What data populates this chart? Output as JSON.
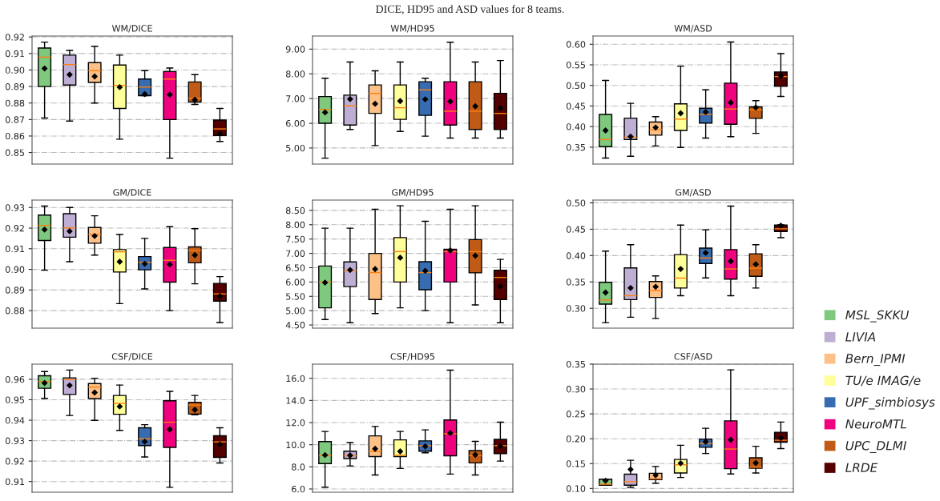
{
  "chart_data": [
    {
      "type": "box",
      "title": "WM/DICE",
      "annotations": [
        "DICE, HD95 and ASD values for 8 teams."
      ],
      "categories": [
        null,
        null,
        null,
        null,
        null,
        null,
        null,
        null
      ],
      "tick_labels": "y",
      "grid": "y",
      "ylim": [
        0.843,
        0.9206
      ],
      "yticks": [
        0.85,
        0.86,
        0.87,
        0.88,
        0.89,
        {
          "value": 0.9,
          "label": "0.90"
        },
        0.91,
        0.92
      ],
      "series": [
        {
          "color": "#7fc97f",
          "boxes": [
            {
              "low": 0.8709,
              "q1": 0.89,
              "median": 0.9078,
              "q3": 0.9133,
              "high": 0.9169,
              "mean": 0.9009
            },
            null,
            null,
            null,
            null,
            null,
            null,
            null
          ]
        },
        {
          "color": "#beaed4",
          "boxes": [
            null,
            {
              "low": 0.8691,
              "q1": 0.8909,
              "median": 0.9033,
              "q3": 0.909,
              "high": 0.9119,
              "mean": 0.8972
            },
            null,
            null,
            null,
            null,
            null,
            null
          ]
        },
        {
          "color": "#fdc086",
          "boxes": [
            null,
            null,
            {
              "low": 0.88,
              "q1": 0.8925,
              "median": 0.8996,
              "q3": 0.9045,
              "high": 0.9143,
              "mean": 0.8961
            },
            null,
            null,
            null,
            null,
            null
          ]
        },
        {
          "color": "#ffff99",
          "boxes": [
            null,
            null,
            null,
            {
              "low": 0.8581,
              "q1": 0.8767,
              "median": 0.8907,
              "q3": 0.903,
              "high": 0.909,
              "mean": 0.8896
            },
            null,
            null,
            null,
            null
          ]
        },
        {
          "color": "#386cb0",
          "boxes": [
            null,
            null,
            null,
            null,
            {
              "low": 0.8845,
              "q1": 0.8845,
              "median": 0.8897,
              "q3": 0.8945,
              "high": 0.8996,
              "mean": 0.8854
            },
            null,
            null,
            null
          ]
        },
        {
          "color": "#f0027f",
          "boxes": [
            null,
            null,
            null,
            null,
            null,
            {
              "low": 0.8466,
              "q1": 0.87,
              "median": 0.8945,
              "q3": 0.8991,
              "high": 0.9012,
              "mean": 0.8851
            },
            null,
            null
          ]
        },
        {
          "color": "#bf5b17",
          "boxes": [
            null,
            null,
            null,
            null,
            null,
            null,
            {
              "low": 0.8791,
              "q1": 0.8806,
              "median": 0.8828,
              "q3": 0.8928,
              "high": 0.8972,
              "mean": 0.8819
            },
            null
          ]
        },
        {
          "color": "#550000",
          "boxes": [
            null,
            null,
            null,
            null,
            null,
            null,
            null,
            {
              "low": 0.8567,
              "q1": 0.8603,
              "median": 0.8643,
              "q3": 0.8697,
              "high": 0.8767,
              "mean": 0.8615
            }
          ]
        }
      ]
    },
    {
      "type": "box",
      "title": "WM/HD95",
      "categories": [
        null,
        null,
        null,
        null,
        null,
        null,
        null,
        null
      ],
      "tick_labels": "y",
      "grid": "y",
      "ylim": [
        4.35,
        9.53
      ],
      "yticks": [
        {
          "value": 5,
          "label": "5.00"
        },
        {
          "value": 6,
          "label": "6.00"
        },
        {
          "value": 7,
          "label": "7.00"
        },
        {
          "value": 8,
          "label": "8.00"
        },
        {
          "value": 9,
          "label": "9.00"
        }
      ],
      "series": [
        {
          "color": "#7fc97f",
          "boxes": [
            {
              "low": 4.59,
              "q1": 6.0,
              "median": 6.56,
              "q3": 7.08,
              "high": 7.82,
              "mean": 6.44
            },
            null,
            null,
            null,
            null,
            null,
            null,
            null
          ]
        },
        {
          "color": "#beaed4",
          "boxes": [
            null,
            {
              "low": 5.75,
              "q1": 5.93,
              "median": 6.71,
              "q3": 7.14,
              "high": 8.48,
              "mean": 6.98
            },
            null,
            null,
            null,
            null,
            null,
            null
          ]
        },
        {
          "color": "#fdc086",
          "boxes": [
            null,
            null,
            {
              "low": 5.1,
              "q1": 6.4,
              "median": 7.21,
              "q3": 7.55,
              "high": 8.12,
              "mean": 6.79
            },
            null,
            null,
            null,
            null,
            null
          ]
        },
        {
          "color": "#ffff99",
          "boxes": [
            null,
            null,
            null,
            {
              "low": 5.67,
              "q1": 6.16,
              "median": 6.63,
              "q3": 7.55,
              "high": 8.48,
              "mean": 6.9
            },
            null,
            null,
            null,
            null
          ]
        },
        {
          "color": "#386cb0",
          "boxes": [
            null,
            null,
            null,
            null,
            {
              "low": 5.48,
              "q1": 6.32,
              "median": 7.35,
              "q3": 7.68,
              "high": 7.82,
              "mean": 6.97
            },
            null,
            null,
            null
          ]
        },
        {
          "color": "#f0027f",
          "boxes": [
            null,
            null,
            null,
            null,
            null,
            {
              "low": 5.4,
              "q1": 5.93,
              "median": 6.49,
              "q3": 7.68,
              "high": 9.28,
              "mean": 6.88
            },
            null,
            null
          ]
        },
        {
          "color": "#bf5b17",
          "boxes": [
            null,
            null,
            null,
            null,
            null,
            null,
            {
              "low": 5.4,
              "q1": 5.75,
              "median": 6.49,
              "q3": 7.68,
              "high": 8.48,
              "mean": 6.69
            },
            null
          ]
        },
        {
          "color": "#550000",
          "boxes": [
            null,
            null,
            null,
            null,
            null,
            null,
            null,
            {
              "low": 5.4,
              "q1": 5.75,
              "median": 6.4,
              "q3": 7.21,
              "high": 8.54,
              "mean": 6.61
            }
          ]
        }
      ]
    },
    {
      "type": "box",
      "title": "WM/ASD",
      "categories": [
        null,
        null,
        null,
        null,
        null,
        null,
        null,
        null
      ],
      "tick_labels": "y",
      "grid": "y",
      "ylim": [
        0.309,
        0.62
      ],
      "yticks": [
        0.35,
        {
          "value": 0.4,
          "label": "0.40"
        },
        0.45,
        {
          "value": 0.5,
          "label": "0.50"
        },
        0.55,
        {
          "value": 0.6,
          "label": "0.60"
        }
      ],
      "series": [
        {
          "color": "#7fc97f",
          "boxes": [
            {
              "low": 0.3237,
              "q1": 0.3512,
              "median": 0.3685,
              "q3": 0.4295,
              "high": 0.512,
              "mean": 0.3907
            },
            null,
            null,
            null,
            null,
            null,
            null,
            null
          ]
        },
        {
          "color": "#beaed4",
          "boxes": [
            null,
            {
              "low": 0.3279,
              "q1": 0.3685,
              "median": 0.374,
              "q3": 0.4206,
              "high": 0.4565,
              "mean": 0.3757
            },
            null,
            null,
            null,
            null,
            null,
            null
          ]
        },
        {
          "color": "#fdc086",
          "boxes": [
            null,
            null,
            {
              "low": 0.353,
              "q1": 0.3793,
              "median": 0.3925,
              "q3": 0.411,
              "high": 0.4242,
              "mean": 0.3978
            },
            null,
            null,
            null,
            null,
            null
          ]
        },
        {
          "color": "#ffff99",
          "boxes": [
            null,
            null,
            null,
            {
              "low": 0.3494,
              "q1": 0.3907,
              "median": 0.4182,
              "q3": 0.4553,
              "high": 0.5468,
              "mean": 0.4325
            },
            null,
            null,
            null,
            null
          ]
        },
        {
          "color": "#386cb0",
          "boxes": [
            null,
            null,
            null,
            null,
            {
              "low": 0.3721,
              "q1": 0.4086,
              "median": 0.4295,
              "q3": 0.4445,
              "high": 0.4894,
              "mean": 0.4355
            },
            null,
            null,
            null
          ]
        },
        {
          "color": "#f0027f",
          "boxes": [
            null,
            null,
            null,
            null,
            null,
            {
              "low": 0.3757,
              "q1": 0.4056,
              "median": 0.4427,
              "q3": 0.5055,
              "high": 0.6054,
              "mean": 0.4583
            },
            null,
            null
          ]
        },
        {
          "color": "#bf5b17",
          "boxes": [
            null,
            null,
            null,
            null,
            null,
            null,
            {
              "low": 0.3835,
              "q1": 0.42,
              "median": 0.4409,
              "q3": 0.4481,
              "high": 0.463,
              "mean": 0.4463
            },
            null
          ]
        },
        {
          "color": "#550000",
          "boxes": [
            null,
            null,
            null,
            null,
            null,
            null,
            null,
            {
              "low": 0.4732,
              "q1": 0.4977,
              "median": 0.5216,
              "q3": 0.5324,
              "high": 0.5773,
              "mean": 0.5234
            }
          ]
        }
      ]
    },
    {
      "type": "box",
      "title": "GM/DICE",
      "categories": [
        null,
        null,
        null,
        null,
        null,
        null,
        null,
        null
      ],
      "tick_labels": "y",
      "grid": "y",
      "ylim": [
        0.8715,
        0.9336
      ],
      "yticks": [
        0.88,
        0.89,
        {
          "value": 0.9,
          "label": "0.90"
        },
        0.91,
        0.92,
        0.93
      ],
      "series": [
        {
          "color": "#7fc97f",
          "boxes": [
            {
              "low": 0.8996,
              "q1": 0.914,
              "median": 0.9213,
              "q3": 0.9263,
              "high": 0.9307,
              "mean": 0.9193
            },
            null,
            null,
            null,
            null,
            null,
            null,
            null
          ]
        },
        {
          "color": "#beaed4",
          "boxes": [
            null,
            {
              "low": 0.9037,
              "q1": 0.9156,
              "median": 0.9201,
              "q3": 0.927,
              "high": 0.93,
              "mean": 0.9185
            },
            null,
            null,
            null,
            null,
            null,
            null
          ]
        },
        {
          "color": "#fdc086",
          "boxes": [
            null,
            null,
            {
              "low": 0.9069,
              "q1": 0.9127,
              "median": 0.917,
              "q3": 0.9203,
              "high": 0.926,
              "mean": 0.9162
            },
            null,
            null,
            null,
            null,
            null
          ]
        },
        {
          "color": "#ffff99",
          "boxes": [
            null,
            null,
            null,
            {
              "low": 0.8834,
              "q1": 0.8987,
              "median": 0.9085,
              "q3": 0.9096,
              "high": 0.9169,
              "mean": 0.9037
            },
            null,
            null,
            null,
            null
          ]
        },
        {
          "color": "#386cb0",
          "boxes": [
            null,
            null,
            null,
            null,
            {
              "low": 0.8905,
              "q1": 0.8998,
              "median": 0.9034,
              "q3": 0.9062,
              "high": 0.915,
              "mean": 0.9027
            },
            null,
            null,
            null
          ]
        },
        {
          "color": "#f0027f",
          "boxes": [
            null,
            null,
            null,
            null,
            null,
            {
              "low": 0.88,
              "q1": 0.8938,
              "median": 0.9044,
              "q3": 0.9106,
              "high": 0.9207,
              "mean": 0.9024
            },
            null,
            null
          ]
        },
        {
          "color": "#bf5b17",
          "boxes": [
            null,
            null,
            null,
            null,
            null,
            null,
            {
              "low": 0.893,
              "q1": 0.9032,
              "median": 0.9092,
              "q3": 0.9109,
              "high": 0.9197,
              "mean": 0.9069
            },
            null
          ]
        },
        {
          "color": "#550000",
          "boxes": [
            null,
            null,
            null,
            null,
            null,
            null,
            null,
            {
              "low": 0.8742,
              "q1": 0.8846,
              "median": 0.8881,
              "q3": 0.8932,
              "high": 0.8965,
              "mean": 0.887
            }
          ]
        }
      ]
    },
    {
      "type": "box",
      "title": "GM/HD95",
      "categories": [
        null,
        null,
        null,
        null,
        null,
        null,
        null,
        null
      ],
      "tick_labels": "y",
      "grid": "y",
      "ylim": [
        4.39,
        8.86
      ],
      "yticks": [
        {
          "value": 4.5,
          "label": "4.50"
        },
        {
          "value": 5,
          "label": "5.00"
        },
        {
          "value": 5.5,
          "label": "5.50"
        },
        {
          "value": 6,
          "label": "6.00"
        },
        {
          "value": 6.5,
          "label": "6.50"
        },
        {
          "value": 7,
          "label": "7.00"
        },
        {
          "value": 7.5,
          "label": "7.50"
        },
        {
          "value": 8,
          "label": "8.00"
        },
        {
          "value": 8.5,
          "label": "8.50"
        }
      ],
      "series": [
        {
          "color": "#7fc97f",
          "boxes": [
            {
              "low": 4.69,
              "q1": 5.1,
              "median": 6.0,
              "q3": 6.56,
              "high": 7.88,
              "mean": 5.98
            },
            null,
            null,
            null,
            null,
            null,
            null,
            null
          ]
        },
        {
          "color": "#beaed4",
          "boxes": [
            null,
            {
              "low": 4.58,
              "q1": 5.84,
              "median": 6.4,
              "q3": 6.7,
              "high": 7.88,
              "mean": 6.42
            },
            null,
            null,
            null,
            null,
            null,
            null
          ]
        },
        {
          "color": "#fdc086",
          "boxes": [
            null,
            null,
            {
              "low": 4.9,
              "q1": 5.39,
              "median": 6.33,
              "q3": 7.0,
              "high": 8.54,
              "mean": 6.45
            },
            null,
            null,
            null,
            null,
            null
          ]
        },
        {
          "color": "#ffff99",
          "boxes": [
            null,
            null,
            null,
            {
              "low": 5.1,
              "q1": 6.0,
              "median": 7.06,
              "q3": 7.55,
              "high": 8.66,
              "mean": 6.85
            },
            null,
            null,
            null,
            null
          ]
        },
        {
          "color": "#386cb0",
          "boxes": [
            null,
            null,
            null,
            null,
            {
              "low": 5.0,
              "q1": 5.73,
              "median": 6.33,
              "q3": 6.71,
              "high": 8.12,
              "mean": 6.39
            },
            null,
            null,
            null
          ]
        },
        {
          "color": "#f0027f",
          "boxes": [
            null,
            null,
            null,
            null,
            null,
            {
              "low": 4.58,
              "q1": 6.0,
              "median": 7.06,
              "q3": 7.14,
              "high": 8.54,
              "mean": 7.1
            },
            null,
            null
          ]
        },
        {
          "color": "#bf5b17",
          "boxes": [
            null,
            null,
            null,
            null,
            null,
            null,
            {
              "low": 5.2,
              "q1": 6.32,
              "median": 7.06,
              "q3": 7.48,
              "high": 8.66,
              "mean": 6.92
            },
            null
          ]
        },
        {
          "color": "#550000",
          "boxes": [
            null,
            null,
            null,
            null,
            null,
            null,
            null,
            {
              "low": 4.58,
              "q1": 5.39,
              "median": 6.16,
              "q3": 6.41,
              "high": 6.79,
              "mean": 5.85
            }
          ]
        }
      ]
    },
    {
      "type": "box",
      "title": "GM/ASD",
      "categories": [
        null,
        null,
        null,
        null,
        null,
        null,
        null,
        null
      ],
      "tick_labels": "y",
      "grid": "y",
      "ylim": [
        0.2624,
        0.5052
      ],
      "yticks": [
        {
          "value": 0.3,
          "label": "0.30"
        },
        0.35,
        {
          "value": 0.4,
          "label": "0.40"
        },
        0.45,
        {
          "value": 0.5,
          "label": "0.50"
        }
      ],
      "series": [
        {
          "color": "#7fc97f",
          "boxes": [
            {
              "low": 0.2728,
              "q1": 0.308,
              "median": 0.3155,
              "q3": 0.3493,
              "high": 0.4085,
              "mean": 0.33
            },
            null,
            null,
            null,
            null,
            null,
            null,
            null
          ]
        },
        {
          "color": "#beaed4",
          "boxes": [
            null,
            {
              "low": 0.2831,
              "q1": 0.3164,
              "median": 0.3239,
              "q3": 0.3765,
              "high": 0.4207,
              "mean": 0.3385
            },
            null,
            null,
            null,
            null,
            null,
            null
          ]
        },
        {
          "color": "#fdc086",
          "boxes": [
            null,
            null,
            {
              "low": 0.2808,
              "q1": 0.3207,
              "median": 0.3338,
              "q3": 0.3507,
              "high": 0.3615,
              "mean": 0.3408
            },
            null,
            null,
            null,
            null,
            null
          ]
        },
        {
          "color": "#ffff99",
          "boxes": [
            null,
            null,
            null,
            {
              "low": 0.3239,
              "q1": 0.3385,
              "median": 0.3573,
              "q3": 0.4019,
              "high": 0.4577,
              "mean": 0.3746
            },
            null,
            null,
            null,
            null
          ]
        },
        {
          "color": "#386cb0",
          "boxes": [
            null,
            null,
            null,
            null,
            {
              "low": 0.3577,
              "q1": 0.385,
              "median": 0.3953,
              "q3": 0.4141,
              "high": 0.4488,
              "mean": 0.4052
            },
            null,
            null,
            null
          ]
        },
        {
          "color": "#f0027f",
          "boxes": [
            null,
            null,
            null,
            null,
            null,
            {
              "low": 0.3239,
              "q1": 0.3554,
              "median": 0.3746,
              "q3": 0.4113,
              "high": 0.4939,
              "mean": 0.3892
            },
            null,
            null
          ]
        },
        {
          "color": "#bf5b17",
          "boxes": [
            null,
            null,
            null,
            null,
            null,
            null,
            {
              "low": 0.3385,
              "q1": 0.3606,
              "median": 0.3761,
              "q3": 0.4033,
              "high": 0.4207,
              "mean": 0.3836
            },
            null
          ]
        },
        {
          "color": "#550000",
          "boxes": [
            null,
            null,
            null,
            null,
            null,
            null,
            null,
            {
              "low": 0.4338,
              "q1": 0.4455,
              "median": 0.4507,
              "q3": 0.4577,
              "high": 0.4582,
              "mean": 0.4568
            }
          ]
        }
      ]
    },
    {
      "type": "box",
      "title": "CSF/DICE",
      "categories": [
        null,
        null,
        null,
        null,
        null,
        null,
        null,
        null
      ],
      "tick_labels": "y",
      "grid": "y",
      "ylim": [
        0.9048,
        0.9674
      ],
      "yticks": [
        0.91,
        0.92,
        0.93,
        0.94,
        0.95,
        0.96
      ],
      "series": [
        {
          "color": "#7fc97f",
          "boxes": [
            {
              "low": 0.9507,
              "q1": 0.9556,
              "median": 0.9589,
              "q3": 0.9617,
              "high": 0.9638,
              "mean": 0.9582
            },
            null,
            null,
            null,
            null,
            null,
            null,
            null
          ]
        },
        {
          "color": "#beaed4",
          "boxes": [
            null,
            {
              "low": 0.9423,
              "q1": 0.9526,
              "median": 0.9599,
              "q3": 0.9607,
              "high": 0.9645,
              "mean": 0.957
            },
            null,
            null,
            null,
            null,
            null,
            null
          ]
        },
        {
          "color": "#fdc086",
          "boxes": [
            null,
            null,
            {
              "low": 0.9399,
              "q1": 0.9506,
              "median": 0.9562,
              "q3": 0.9579,
              "high": 0.9605,
              "mean": 0.9535
            },
            null,
            null,
            null,
            null,
            null
          ]
        },
        {
          "color": "#ffff99",
          "boxes": [
            null,
            null,
            null,
            {
              "low": 0.935,
              "q1": 0.9429,
              "median": 0.9482,
              "q3": 0.9521,
              "high": 0.9572,
              "mean": 0.9467
            },
            null,
            null,
            null,
            null
          ]
        },
        {
          "color": "#386cb0",
          "boxes": [
            null,
            null,
            null,
            null,
            {
              "low": 0.922,
              "q1": 0.9276,
              "median": 0.9309,
              "q3": 0.9363,
              "high": 0.9378,
              "mean": 0.9295
            },
            null,
            null,
            null
          ]
        },
        {
          "color": "#f0027f",
          "boxes": [
            null,
            null,
            null,
            null,
            null,
            {
              "low": 0.9072,
              "q1": 0.9267,
              "median": 0.939,
              "q3": 0.9495,
              "high": 0.9541,
              "mean": 0.9355
            },
            null,
            null
          ]
        },
        {
          "color": "#bf5b17",
          "boxes": [
            null,
            null,
            null,
            null,
            null,
            null,
            {
              "low": 0.9426,
              "q1": 0.943,
              "median": 0.9474,
              "q3": 0.9487,
              "high": 0.9521,
              "mean": 0.9451
            },
            null
          ]
        },
        {
          "color": "#550000",
          "boxes": [
            null,
            null,
            null,
            null,
            null,
            null,
            null,
            {
              "low": 0.9191,
              "q1": 0.9218,
              "median": 0.9294,
              "q3": 0.9324,
              "high": 0.9363,
              "mean": 0.9282
            }
          ]
        }
      ]
    },
    {
      "type": "box",
      "title": "CSF/HD95",
      "categories": [
        null,
        null,
        null,
        null,
        null,
        null,
        null,
        null
      ],
      "tick_labels": "y",
      "grid": "y",
      "ylim": [
        5.71,
        17.28
      ],
      "yticks": [
        {
          "value": 6,
          "label": "6.0"
        },
        {
          "value": 8,
          "label": "8.0"
        },
        {
          "value": 10,
          "label": "10.0"
        },
        {
          "value": 12,
          "label": "12.0"
        },
        {
          "value": 14,
          "label": "14.0"
        },
        {
          "value": 16,
          "label": "16.0"
        }
      ],
      "series": [
        {
          "color": "#7fc97f",
          "boxes": [
            {
              "low": 6.16,
              "q1": 8.3,
              "median": 9.04,
              "q3": 10.28,
              "high": 11.2,
              "mean": 9.06
            },
            null,
            null,
            null,
            null,
            null,
            null,
            null
          ]
        },
        {
          "color": "#beaed4",
          "boxes": [
            null,
            {
              "low": 8.09,
              "q1": 8.75,
              "median": 9.0,
              "q3": 9.42,
              "high": 10.19,
              "mean": 9.04
            },
            null,
            null,
            null,
            null,
            null,
            null
          ]
        },
        {
          "color": "#fdc086",
          "boxes": [
            null,
            null,
            {
              "low": 7.26,
              "q1": 8.93,
              "median": 9.38,
              "q3": 10.8,
              "high": 11.65,
              "mean": 9.63
            },
            null,
            null,
            null,
            null,
            null
          ]
        },
        {
          "color": "#ffff99",
          "boxes": [
            null,
            null,
            null,
            {
              "low": 7.85,
              "q1": 8.93,
              "median": 9.06,
              "q3": 10.44,
              "high": 11.2,
              "mean": 9.4
            },
            null,
            null,
            null,
            null
          ]
        },
        {
          "color": "#386cb0",
          "boxes": [
            null,
            null,
            null,
            null,
            {
              "low": 9.27,
              "q1": 9.42,
              "median": 9.91,
              "q3": 10.35,
              "high": 11.34,
              "mean": 9.85
            },
            null,
            null,
            null
          ]
        },
        {
          "color": "#f0027f",
          "boxes": [
            null,
            null,
            null,
            null,
            null,
            {
              "low": 7.35,
              "q1": 9.0,
              "median": 11.0,
              "q3": 12.24,
              "high": 16.74,
              "mean": 11.05
            },
            null,
            null
          ]
        },
        {
          "color": "#bf5b17",
          "boxes": [
            null,
            null,
            null,
            null,
            null,
            null,
            {
              "low": 7.26,
              "q1": 8.36,
              "median": 9.02,
              "q3": 9.47,
              "high": 10.3,
              "mean": 9.09
            },
            null
          ]
        },
        {
          "color": "#550000",
          "boxes": [
            null,
            null,
            null,
            null,
            null,
            null,
            null,
            {
              "low": 8.52,
              "q1": 9.2,
              "median": 9.91,
              "q3": 10.48,
              "high": 12.04,
              "mean": 9.87
            }
          ]
        }
      ]
    },
    {
      "type": "box",
      "title": "CSF/ASD",
      "categories": [
        null,
        null,
        null,
        null,
        null,
        null,
        null,
        null
      ],
      "tick_labels": "y",
      "grid": "y",
      "legend": "right",
      "ylim": [
        0.0925,
        0.35
      ],
      "yticks": [
        {
          "value": 0.1,
          "label": "0.10"
        },
        0.15,
        {
          "value": 0.2,
          "label": "0.20"
        },
        0.25,
        {
          "value": 0.3,
          "label": "0.30"
        },
        0.35
      ],
      "series": [
        {
          "name": "MSL_SKKU",
          "color": "#7fc97f",
          "boxes": [
            {
              "low": 0.1065,
              "q1": 0.1065,
              "median": 0.1085,
              "q3": 0.1186,
              "high": 0.1186,
              "mean": 0.1156
            },
            null,
            null,
            null,
            null,
            null,
            null,
            null
          ]
        },
        {
          "name": "LIVIA",
          "color": "#beaed4",
          "boxes": [
            null,
            {
              "low": 0.1025,
              "q1": 0.1065,
              "median": 0.1136,
              "q3": 0.1286,
              "high": 0.1567,
              "mean": 0.1382
            },
            null,
            null,
            null,
            null,
            null,
            null
          ]
        },
        {
          "name": "Bern_IPMI",
          "color": "#fdc086",
          "boxes": [
            null,
            null,
            {
              "low": 0.1105,
              "q1": 0.1176,
              "median": 0.1201,
              "q3": 0.1306,
              "high": 0.1442,
              "mean": 0.1266
            },
            null,
            null,
            null,
            null,
            null
          ]
        },
        {
          "name": "TU/e IMAG/e",
          "color": "#ffff99",
          "boxes": [
            null,
            null,
            null,
            {
              "low": 0.1221,
              "q1": 0.1311,
              "median": 0.1477,
              "q3": 0.1582,
              "high": 0.1869,
              "mean": 0.1507
            },
            null,
            null,
            null,
            null
          ]
        },
        {
          "name": "UPF_simbiosys",
          "color": "#386cb0",
          "boxes": [
            null,
            null,
            null,
            null,
            {
              "low": 0.1703,
              "q1": 0.1828,
              "median": 0.1904,
              "q3": 0.1994,
              "high": 0.221,
              "mean": 0.1939
            },
            null,
            null,
            null
          ]
        },
        {
          "name": "NeuroMTL",
          "color": "#f0027f",
          "boxes": [
            null,
            null,
            null,
            null,
            null,
            {
              "low": 0.1291,
              "q1": 0.1397,
              "median": 0.1793,
              "q3": 0.236,
              "high": 0.3385,
              "mean": 0.1979
            },
            null,
            null
          ]
        },
        {
          "name": "UPC_DLMI",
          "color": "#bf5b17",
          "boxes": [
            null,
            null,
            null,
            null,
            null,
            null,
            {
              "low": 0.1311,
              "q1": 0.1407,
              "median": 0.1427,
              "q3": 0.1617,
              "high": 0.1848,
              "mean": 0.1512
            },
            null
          ]
        },
        {
          "name": "LRDE",
          "color": "#550000",
          "boxes": [
            null,
            null,
            null,
            null,
            null,
            null,
            null,
            {
              "low": 0.1803,
              "q1": 0.1929,
              "median": 0.1969,
              "q3": 0.213,
              "high": 0.2335,
              "mean": 0.2014
            }
          ]
        }
      ]
    }
  ]
}
